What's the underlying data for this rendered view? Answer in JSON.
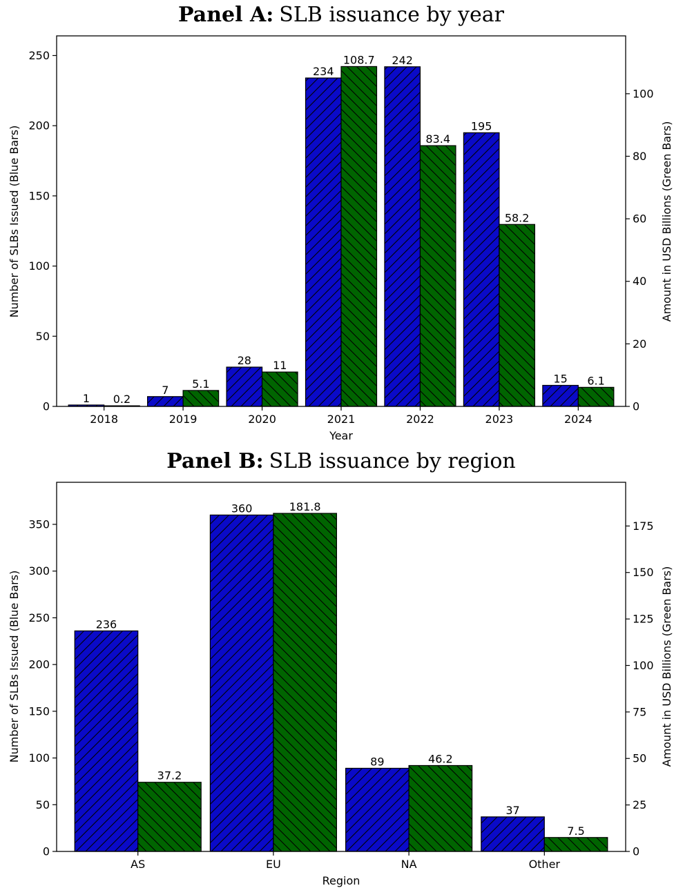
{
  "colors": {
    "blue_bar": "#0a0ac8",
    "green_bar": "#006400",
    "hatch": "#000000"
  },
  "chart_data": [
    {
      "type": "bar",
      "panel_prefix": "Panel A:",
      "title": "SLB issuance by year",
      "xlabel": "Year",
      "ylabel_left": "Number of SLBs Issued (Blue Bars)",
      "ylabel_right": "Amount in USD Billions (Green Bars)",
      "categories": [
        "2018",
        "2019",
        "2020",
        "2021",
        "2022",
        "2023",
        "2024"
      ],
      "series": [
        {
          "axis": "left",
          "color": "#0a0ac8",
          "hatch": "forward-diagonal",
          "values": [
            1,
            7,
            28,
            234,
            242,
            195,
            15
          ],
          "labels": [
            "1",
            "7",
            "28",
            "234",
            "242",
            "195",
            "15"
          ]
        },
        {
          "axis": "right",
          "color": "#006400",
          "hatch": "back-diagonal",
          "values": [
            0.2,
            5.1,
            11,
            108.7,
            83.4,
            58.2,
            6.1
          ],
          "labels": [
            "0.2",
            "5.1",
            "11",
            "108.7",
            "83.4",
            "58.2",
            "6.1"
          ]
        }
      ],
      "ylim_left": [
        0,
        264
      ],
      "ylim_right": [
        0,
        118.5
      ],
      "yticks_left": [
        0,
        50,
        100,
        150,
        200,
        250
      ],
      "yticks_right": [
        0,
        20,
        40,
        60,
        80,
        100
      ],
      "grid": false,
      "legend": "none"
    },
    {
      "type": "bar",
      "panel_prefix": "Panel B:",
      "title": "SLB issuance by region",
      "xlabel": "Region",
      "ylabel_left": "Number of SLBs Issued (Blue Bars)",
      "ylabel_right": "Amount in USD Billions (Green Bars)",
      "categories": [
        "AS",
        "EU",
        "NA",
        "Other"
      ],
      "series": [
        {
          "axis": "left",
          "color": "#0a0ac8",
          "hatch": "forward-diagonal",
          "values": [
            236,
            360,
            89,
            37
          ],
          "labels": [
            "236",
            "360",
            "89",
            "37"
          ]
        },
        {
          "axis": "right",
          "color": "#006400",
          "hatch": "back-diagonal",
          "values": [
            37.2,
            181.8,
            46.2,
            7.5
          ],
          "labels": [
            "37.2",
            "181.8",
            "46.2",
            "7.5"
          ]
        }
      ],
      "ylim_left": [
        0,
        395
      ],
      "ylim_right": [
        0,
        198.5
      ],
      "yticks_left": [
        0,
        50,
        100,
        150,
        200,
        250,
        300,
        350
      ],
      "yticks_right": [
        0,
        25,
        50,
        75,
        100,
        125,
        150,
        175
      ],
      "grid": false,
      "legend": "none"
    }
  ]
}
